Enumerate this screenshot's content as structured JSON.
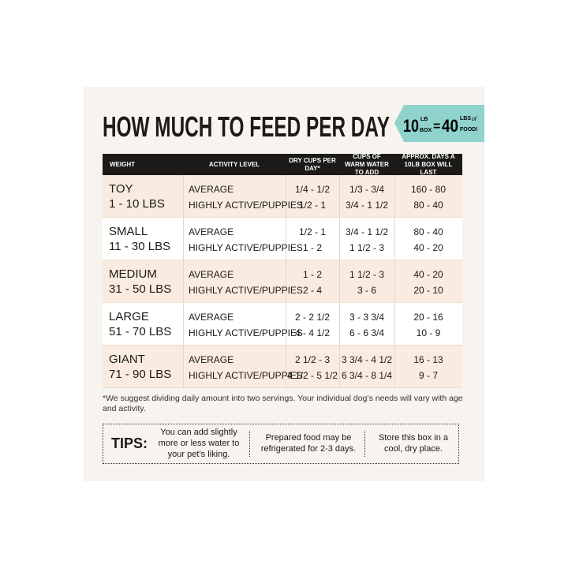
{
  "header": {
    "title": "HOW MUCH TO FEED PER DAY",
    "badge": {
      "left_number": "10",
      "left_unit_top": "LB",
      "left_unit_bottom": "BOX",
      "equals": "=",
      "right_number": "40",
      "right_unit_top": "LBS",
      "right_unit_of": "of",
      "right_unit_bottom": "FOOD!"
    }
  },
  "table": {
    "columns": [
      "WEIGHT",
      "ACTIVITY LEVEL",
      "DRY CUPS PER DAY*",
      "CUPS OF WARM WATER TO ADD",
      "APPROX. DAYS A 10LB BOX WILL LAST"
    ],
    "rows": [
      {
        "size": "TOY",
        "weight": "1 - 10 LBS",
        "levels": [
          {
            "activity": "AVERAGE",
            "dry": "1/4 - 1/2",
            "water": "1/3 - 3/4",
            "days": "160 - 80"
          },
          {
            "activity": "HIGHLY ACTIVE/PUPPIES",
            "dry": "1/2 - 1",
            "water": "3/4 - 1 1/2",
            "days": "80 - 40"
          }
        ]
      },
      {
        "size": "SMALL",
        "weight": "11 - 30 LBS",
        "levels": [
          {
            "activity": "AVERAGE",
            "dry": "1/2 - 1",
            "water": "3/4 - 1 1/2",
            "days": "80 - 40"
          },
          {
            "activity": "HIGHLY ACTIVE/PUPPIES",
            "dry": "1 - 2",
            "water": "1 1/2 - 3",
            "days": "40 - 20"
          }
        ]
      },
      {
        "size": "MEDIUM",
        "weight": "31 - 50 LBS",
        "levels": [
          {
            "activity": "AVERAGE",
            "dry": "1 - 2",
            "water": "1 1/2 - 3",
            "days": "40 - 20"
          },
          {
            "activity": "HIGHLY ACTIVE/PUPPIES",
            "dry": "2 - 4",
            "water": "3 - 6",
            "days": "20 - 10"
          }
        ]
      },
      {
        "size": "LARGE",
        "weight": "51 - 70 LBS",
        "levels": [
          {
            "activity": "AVERAGE",
            "dry": "2 - 2 1/2",
            "water": "3 - 3 3/4",
            "days": "20 - 16"
          },
          {
            "activity": "HIGHLY ACTIVE/PUPPIES",
            "dry": "4 - 4 1/2",
            "water": "6 - 6 3/4",
            "days": "10 - 9"
          }
        ]
      },
      {
        "size": "GIANT",
        "weight": "71 - 90 LBS",
        "levels": [
          {
            "activity": "AVERAGE",
            "dry": "2 1/2 - 3",
            "water": "3 3/4 - 4 1/2",
            "days": "16 - 13"
          },
          {
            "activity": "HIGHLY ACTIVE/PUPPIES",
            "dry": "4 1/2 - 5 1/2",
            "water": "6 3/4 - 8 1/4",
            "days": "9 - 7"
          }
        ]
      }
    ]
  },
  "footnote": "*We suggest dividing daily amount into two servings. Your individual dog’s needs will vary with age and activity.",
  "tips": {
    "label": "TIPS:",
    "items": [
      "You can add slightly more or less water to your pet’s liking.",
      "Prepared food may be refrigerated for 2-3 days.",
      "Store this box in a cool, dry place."
    ]
  }
}
